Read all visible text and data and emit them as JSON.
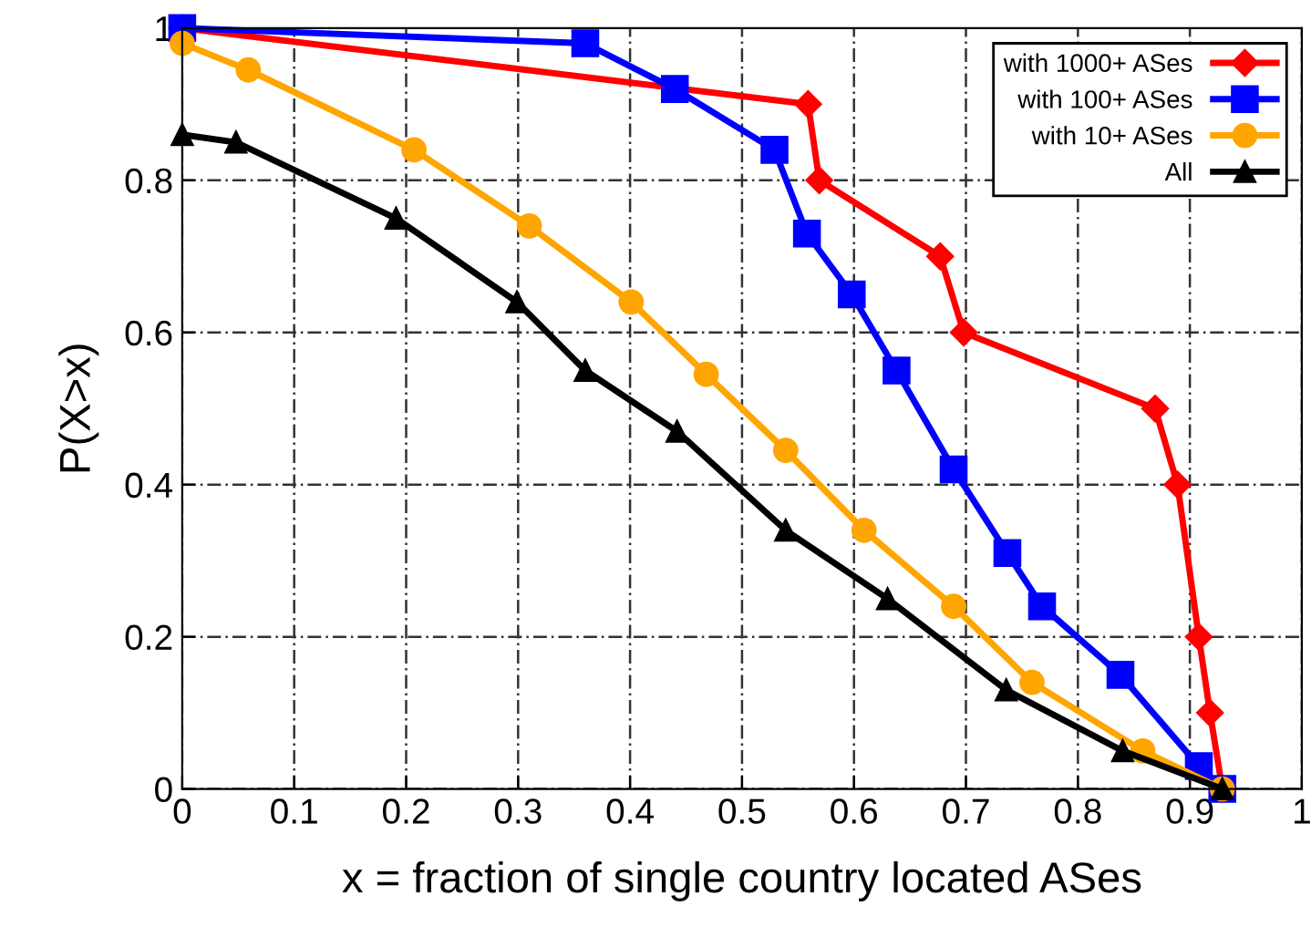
{
  "chart_data": {
    "type": "line",
    "xlabel": "x = fraction of single country located ASes",
    "ylabel": "P(X>x)",
    "xlim": [
      0,
      1
    ],
    "ylim": [
      0,
      1
    ],
    "xticks": [
      0,
      0.1,
      0.2,
      0.3,
      0.4,
      0.5,
      0.6,
      0.7,
      0.8,
      0.9,
      1
    ],
    "yticks": [
      0,
      0.2,
      0.4,
      0.6,
      0.8,
      1
    ],
    "grid": true,
    "legend": "top right",
    "line_style": "solid",
    "series": [
      {
        "name": "with 1000+ ASes",
        "color": "#ff0000",
        "marker": "diamond",
        "x": [
          0,
          0.559,
          0.569,
          0.677,
          0.698,
          0.869,
          0.889,
          0.908,
          0.918,
          0.929
        ],
        "values": [
          1,
          0.9,
          0.8,
          0.7,
          0.6,
          0.5,
          0.4,
          0.2,
          0.1,
          0
        ]
      },
      {
        "name": "with 100+ ASes",
        "color": "#0000ff",
        "marker": "square",
        "x": [
          0,
          0.36,
          0.44,
          0.529,
          0.558,
          0.598,
          0.638,
          0.689,
          0.737,
          0.768,
          0.838,
          0.908,
          0.929
        ],
        "values": [
          1,
          0.98,
          0.92,
          0.84,
          0.73,
          0.65,
          0.55,
          0.42,
          0.31,
          0.24,
          0.15,
          0.03,
          0
        ]
      },
      {
        "name": "with 10+ ASes",
        "color": "#ffa500",
        "marker": "circle",
        "x": [
          0,
          0.059,
          0.207,
          0.31,
          0.401,
          0.468,
          0.539,
          0.609,
          0.689,
          0.759,
          0.858,
          0.929
        ],
        "values": [
          0.98,
          0.945,
          0.84,
          0.74,
          0.64,
          0.545,
          0.445,
          0.34,
          0.24,
          0.14,
          0.05,
          0
        ]
      },
      {
        "name": "All",
        "color": "#000000",
        "marker": "triangle",
        "x": [
          0,
          0.048,
          0.191,
          0.299,
          0.36,
          0.442,
          0.539,
          0.63,
          0.736,
          0.84,
          0.929
        ],
        "values": [
          0.86,
          0.85,
          0.75,
          0.64,
          0.55,
          0.47,
          0.34,
          0.25,
          0.13,
          0.05,
          0
        ]
      }
    ]
  }
}
